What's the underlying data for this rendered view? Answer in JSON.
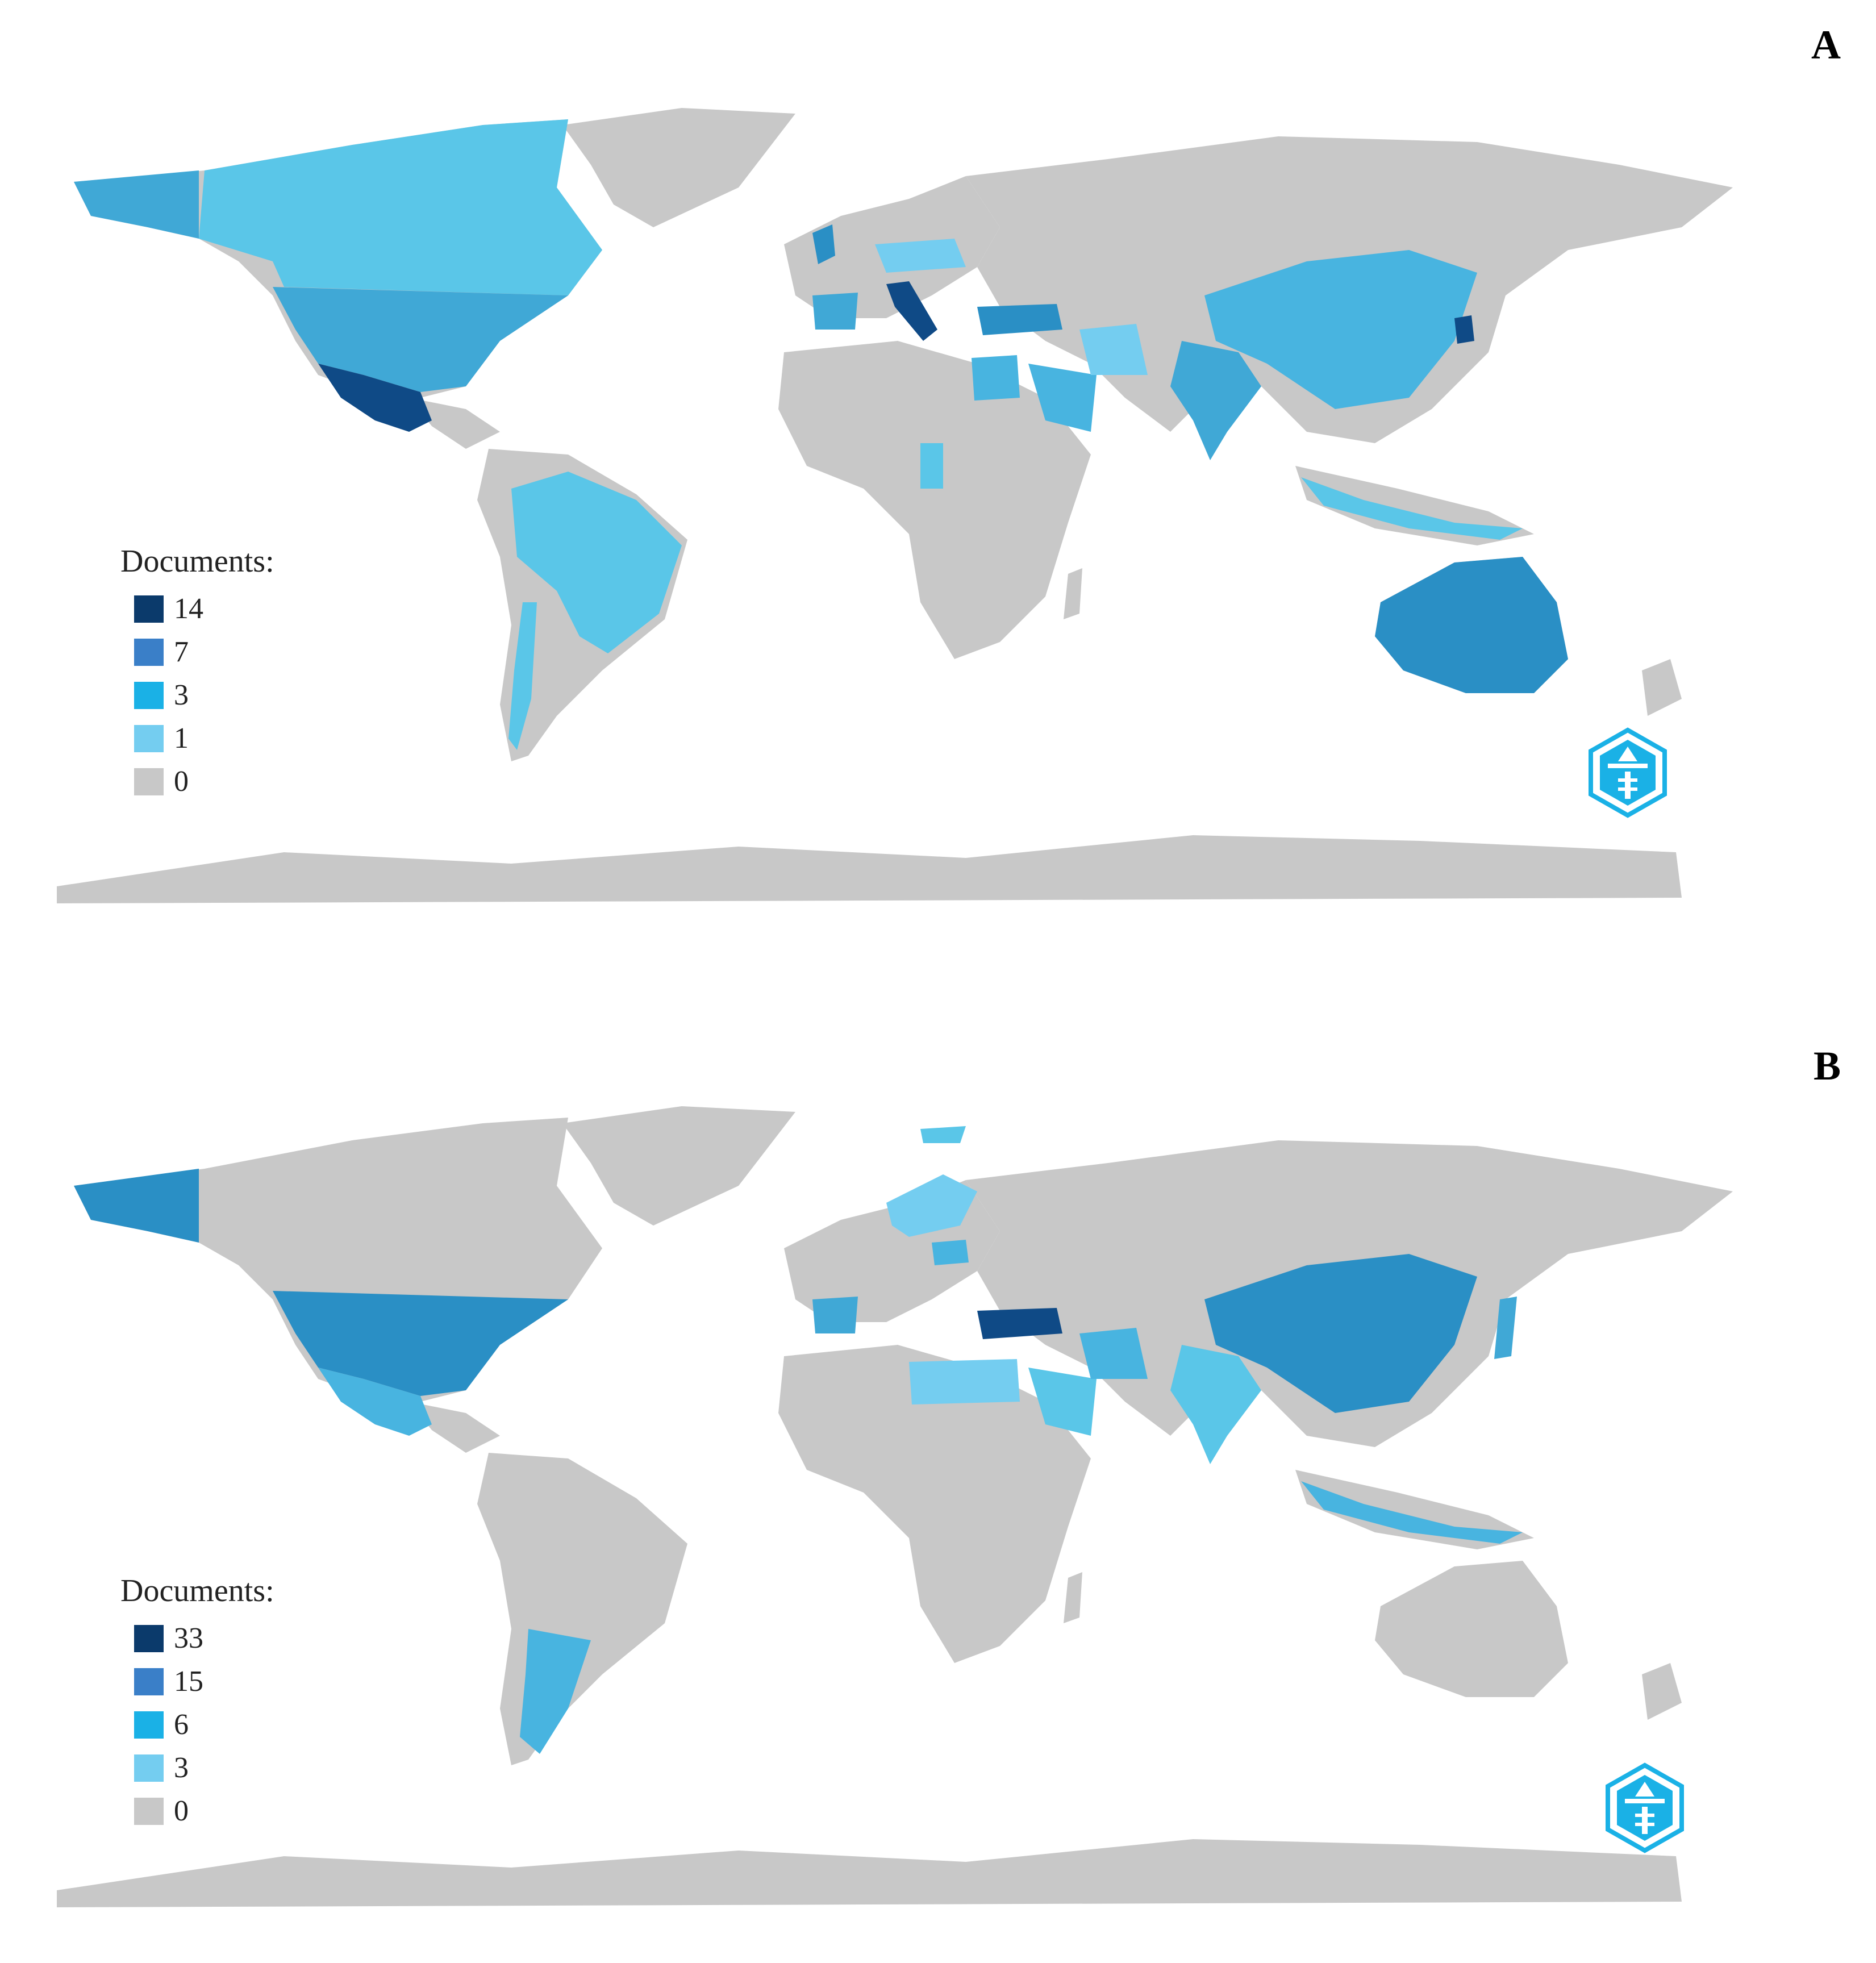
{
  "panels": [
    {
      "letter": "A",
      "legend": {
        "title": "Documents:",
        "items": [
          {
            "label": "14",
            "color": "#0b3a6b"
          },
          {
            "label": "7",
            "color": "#3a7fc8"
          },
          {
            "label": "3",
            "color": "#1ab1e6"
          },
          {
            "label": "1",
            "color": "#74cdf0"
          },
          {
            "label": "0",
            "color": "#c8c8c8"
          }
        ]
      },
      "highlighted_regions": [
        {
          "region": "mexico",
          "color": "#0f4a86"
        },
        {
          "region": "italy",
          "color": "#0f4a86"
        },
        {
          "region": "australia",
          "color": "#2a8fc5"
        },
        {
          "region": "usa",
          "color": "#40a8d6"
        },
        {
          "region": "canada",
          "color": "#5ac6e8"
        },
        {
          "region": "brazil",
          "color": "#5ac6e8"
        },
        {
          "region": "china",
          "color": "#48b4e0"
        },
        {
          "region": "india",
          "color": "#40a8d6"
        },
        {
          "region": "turkey",
          "color": "#2a8fc5"
        },
        {
          "region": "spain",
          "color": "#40a8d6"
        },
        {
          "region": "uk",
          "color": "#2a8fc5"
        },
        {
          "region": "korea",
          "color": "#0f4a86"
        },
        {
          "region": "saudi",
          "color": "#48b4e0"
        },
        {
          "region": "iran",
          "color": "#74cdf0"
        },
        {
          "region": "egypt",
          "color": "#48b4e0"
        },
        {
          "region": "indonesia",
          "color": "#5ac6e8"
        },
        {
          "region": "chile",
          "color": "#5ac6e8"
        },
        {
          "region": "cameroon",
          "color": "#5ac6e8"
        },
        {
          "region": "central-europe",
          "color": "#74cdf0"
        }
      ]
    },
    {
      "letter": "B",
      "legend": {
        "title": "Documents:",
        "items": [
          {
            "label": "33",
            "color": "#0b3a6b"
          },
          {
            "label": "15",
            "color": "#3a7fc8"
          },
          {
            "label": "6",
            "color": "#1ab1e6"
          },
          {
            "label": "3",
            "color": "#74cdf0"
          },
          {
            "label": "0",
            "color": "#c8c8c8"
          }
        ]
      },
      "highlighted_regions": [
        {
          "region": "turkey",
          "color": "#0f4a86"
        },
        {
          "region": "usa",
          "color": "#2a8fc5"
        },
        {
          "region": "alaska",
          "color": "#2a8fc5"
        },
        {
          "region": "china",
          "color": "#2a8fc5"
        },
        {
          "region": "mexico",
          "color": "#48b4e0"
        },
        {
          "region": "argentina",
          "color": "#48b4e0"
        },
        {
          "region": "india",
          "color": "#5ac6e8"
        },
        {
          "region": "saudi",
          "color": "#5ac6e8"
        },
        {
          "region": "iran",
          "color": "#48b4e0"
        },
        {
          "region": "egypt",
          "color": "#74cdf0"
        },
        {
          "region": "indonesia",
          "color": "#48b4e0"
        },
        {
          "region": "japan",
          "color": "#40a8d6"
        },
        {
          "region": "spain",
          "color": "#40a8d6"
        },
        {
          "region": "scandinavia",
          "color": "#74cdf0"
        },
        {
          "region": "poland",
          "color": "#48b4e0"
        },
        {
          "region": "svalbard",
          "color": "#5ac6e8"
        }
      ]
    }
  ],
  "base_land_color": "#c8c8c8"
}
